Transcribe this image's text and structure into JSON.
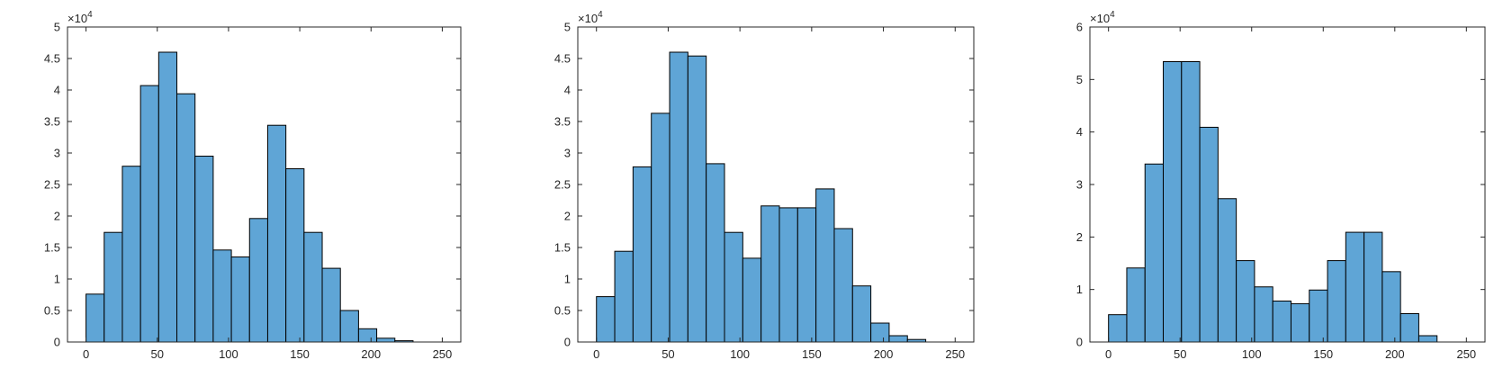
{
  "colors": {
    "bar_fill": "#5fa5d6",
    "bar_edge": "#000000",
    "axis": "#262626",
    "background": "#ffffff"
  },
  "chart_data": [
    {
      "type": "bar",
      "title": "",
      "xlabel": "",
      "ylabel": "",
      "grid": false,
      "bin_edges": [
        0,
        12.75,
        25.5,
        38.25,
        51,
        63.75,
        76.5,
        89.25,
        102,
        114.75,
        127.5,
        140.25,
        153,
        165.75,
        178.5,
        191.25,
        204,
        216.75,
        229.5,
        242.25,
        255
      ],
      "values": [
        7600,
        17400,
        27900,
        40700,
        46000,
        39400,
        29500,
        14600,
        13500,
        19600,
        34400,
        27500,
        17400,
        11700,
        5000,
        2100,
        600,
        200,
        0,
        0
      ],
      "xlim": [
        -13,
        263
      ],
      "ylim": [
        0,
        50000
      ],
      "xticks": [
        0,
        50,
        100,
        150,
        200,
        250
      ],
      "yticks": [
        0,
        5000,
        10000,
        15000,
        20000,
        25000,
        30000,
        35000,
        40000,
        45000,
        50000
      ],
      "ytick_labels": [
        "0",
        "0.5",
        "1",
        "1.5",
        "2",
        "2.5",
        "3",
        "3.5",
        "4",
        "4.5",
        "5"
      ],
      "exponent": {
        "base": "×10",
        "power": "4"
      }
    },
    {
      "type": "bar",
      "title": "",
      "xlabel": "",
      "ylabel": "",
      "grid": false,
      "bin_edges": [
        0,
        12.75,
        25.5,
        38.25,
        51,
        63.75,
        76.5,
        89.25,
        102,
        114.75,
        127.5,
        140.25,
        153,
        165.75,
        178.5,
        191.25,
        204,
        216.75,
        229.5,
        242.25,
        255
      ],
      "values": [
        7200,
        14400,
        27800,
        36300,
        46000,
        45400,
        28300,
        17400,
        13300,
        21600,
        21300,
        21300,
        24300,
        18000,
        8900,
        3000,
        1000,
        400,
        0,
        0
      ],
      "xlim": [
        -13,
        263
      ],
      "ylim": [
        0,
        50000
      ],
      "xticks": [
        0,
        50,
        100,
        150,
        200,
        250
      ],
      "yticks": [
        0,
        5000,
        10000,
        15000,
        20000,
        25000,
        30000,
        35000,
        40000,
        45000,
        50000
      ],
      "ytick_labels": [
        "0",
        "0.5",
        "1",
        "1.5",
        "2",
        "2.5",
        "3",
        "3.5",
        "4",
        "4.5",
        "5"
      ],
      "exponent": {
        "base": "×10",
        "power": "4"
      }
    },
    {
      "type": "bar",
      "title": "",
      "xlabel": "",
      "ylabel": "",
      "grid": false,
      "bin_edges": [
        0,
        12.75,
        25.5,
        38.25,
        51,
        63.75,
        76.5,
        89.25,
        102,
        114.75,
        127.5,
        140.25,
        153,
        165.75,
        178.5,
        191.25,
        204,
        216.75,
        229.5,
        242.25,
        255
      ],
      "values": [
        5200,
        14100,
        33900,
        53400,
        53400,
        40900,
        27300,
        15500,
        10500,
        7800,
        7300,
        9900,
        15500,
        20900,
        20900,
        13400,
        5400,
        1200,
        0,
        0
      ],
      "xlim": [
        -13,
        263
      ],
      "ylim": [
        0,
        60000
      ],
      "xticks": [
        0,
        50,
        100,
        150,
        200,
        250
      ],
      "yticks": [
        0,
        10000,
        20000,
        30000,
        40000,
        50000,
        60000
      ],
      "ytick_labels": [
        "0",
        "1",
        "2",
        "3",
        "4",
        "5",
        "6"
      ],
      "exponent": {
        "base": "×10",
        "power": "4"
      }
    }
  ]
}
